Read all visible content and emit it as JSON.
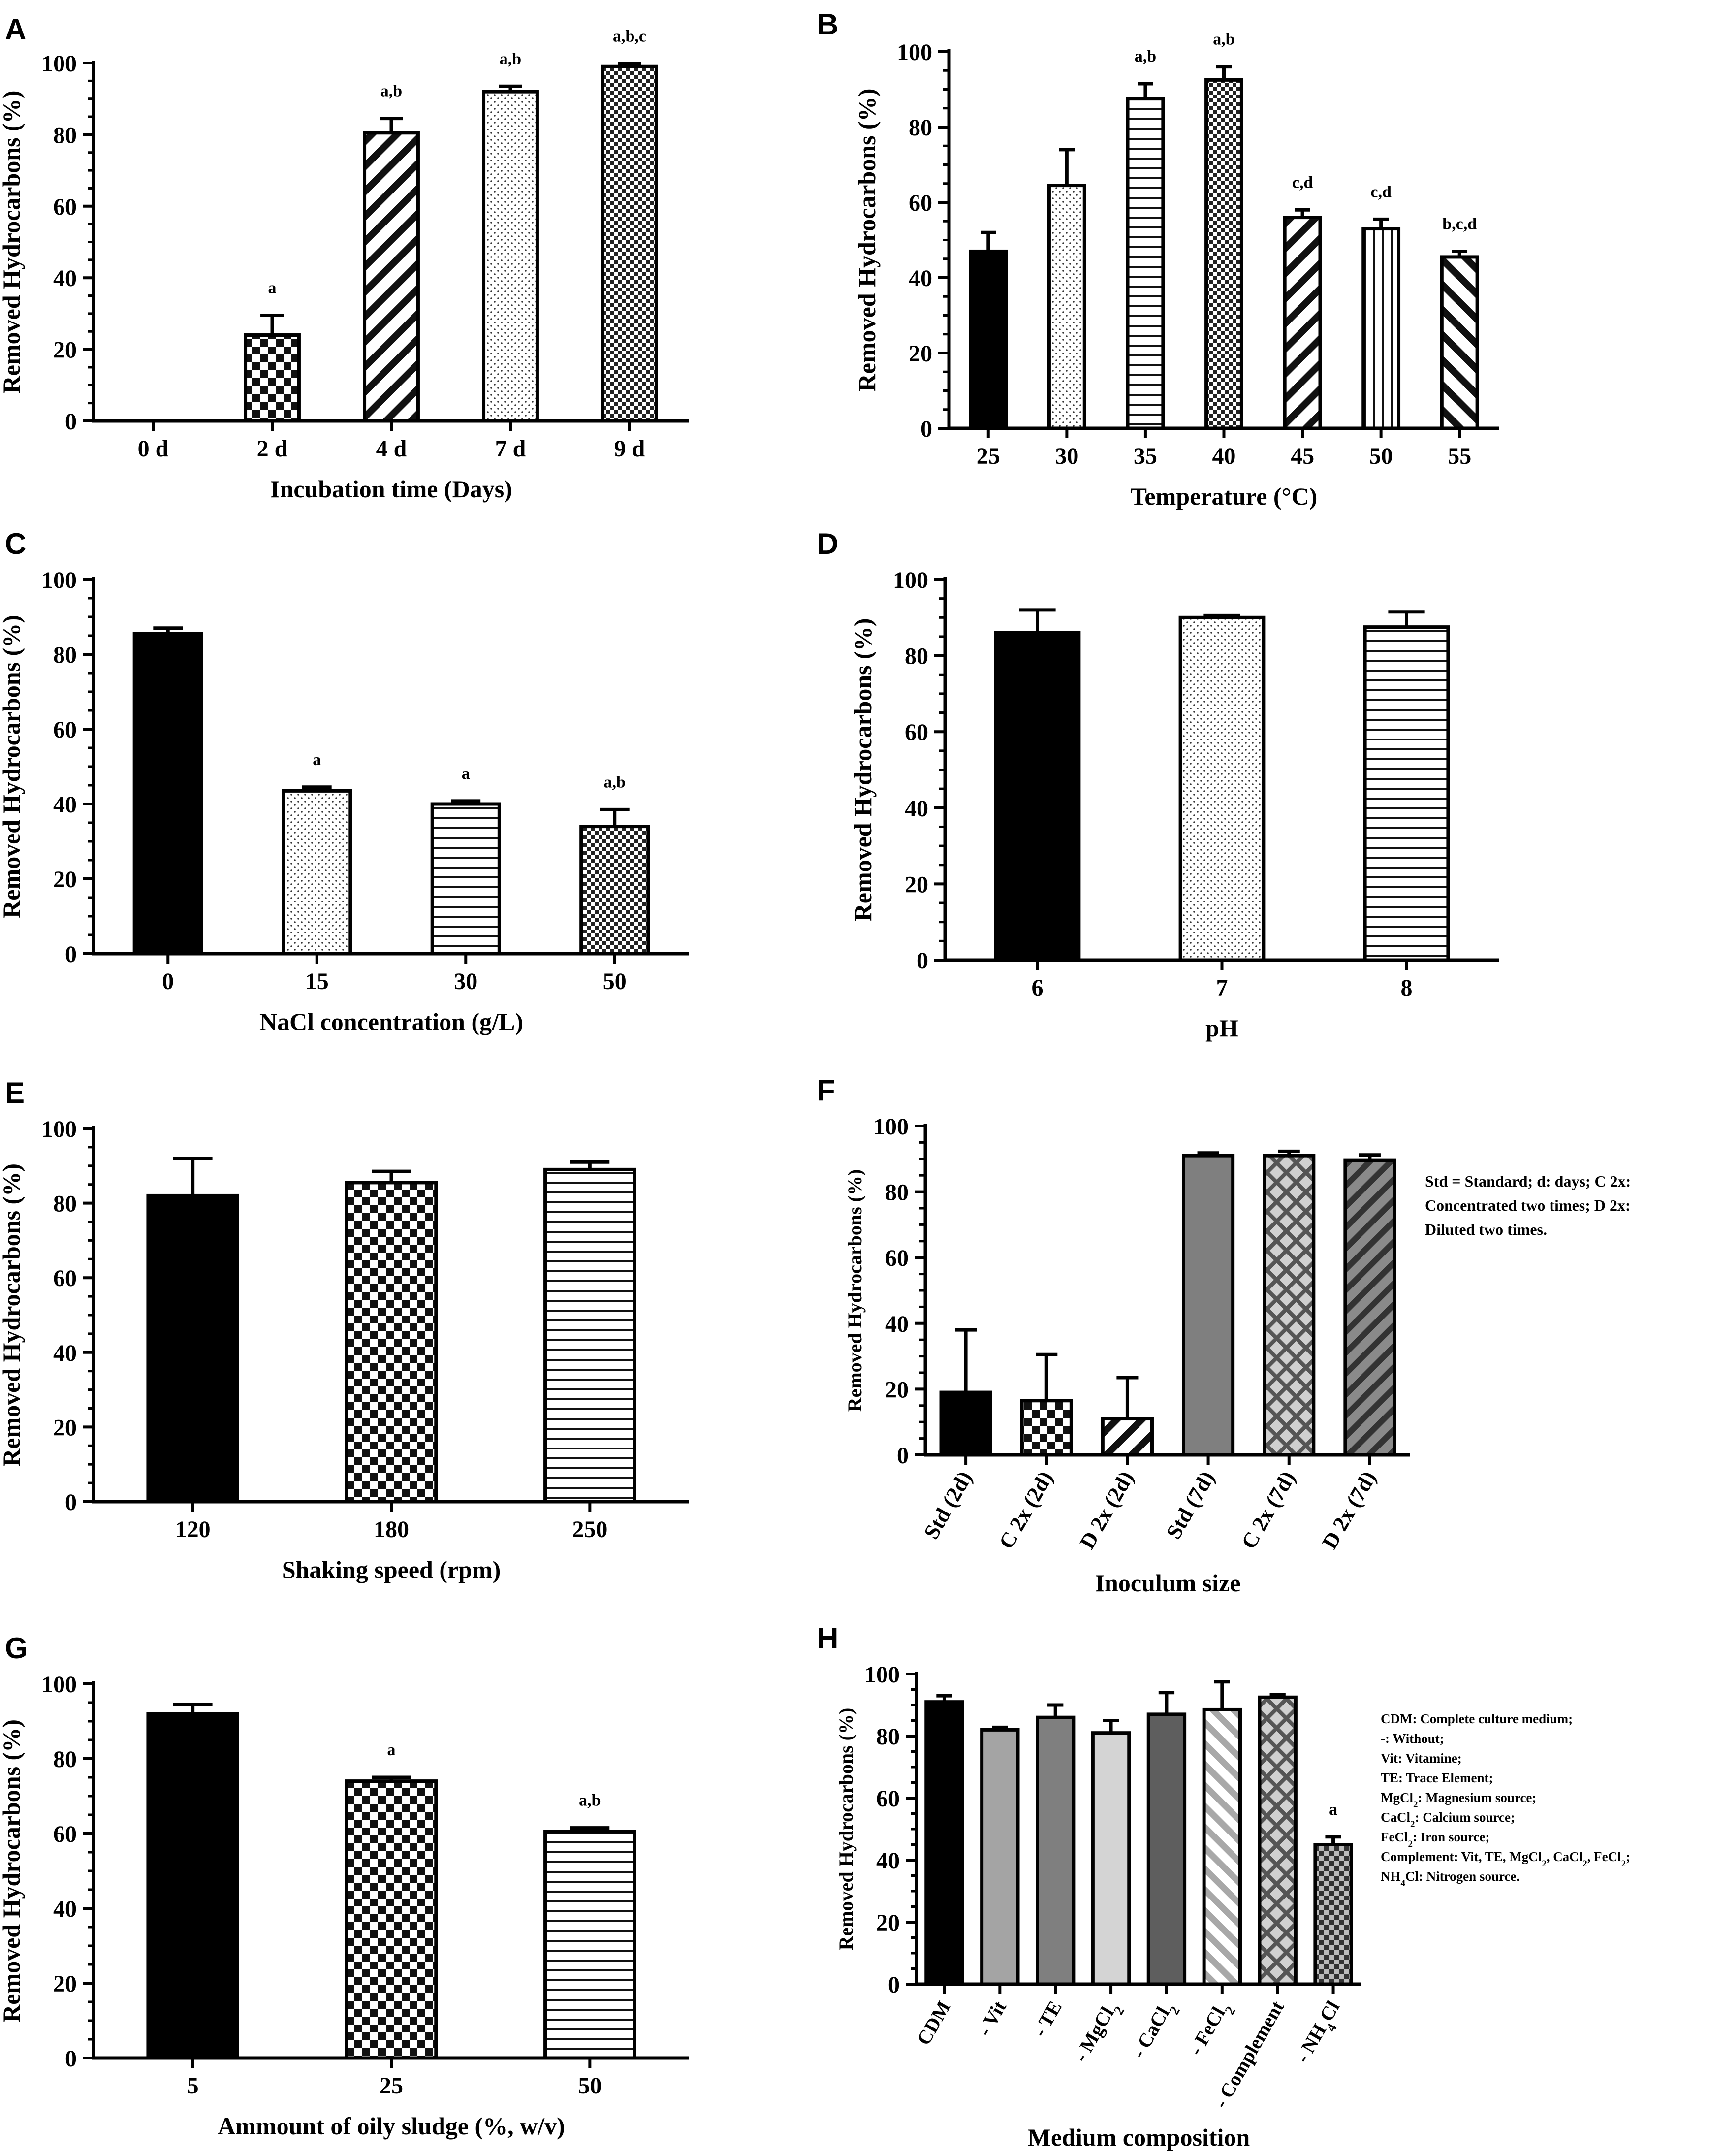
{
  "chart_data": [
    {
      "type": "bar",
      "panel": "A",
      "categories": [
        "0 d",
        "2 d",
        "4 d",
        "7 d",
        "9 d"
      ],
      "values": [
        0,
        24,
        80.5,
        92,
        99
      ],
      "errors": [
        0,
        5.5,
        4,
        1.5,
        0.8
      ],
      "significance": [
        "",
        "a",
        "a,b",
        "a,b",
        "a,b,c"
      ],
      "patterns": [
        "black",
        "checker",
        "diag-wide",
        "dots",
        "dense-checker"
      ],
      "xlabel": "Incubation time  (Days)",
      "ylabel": "Removed Hydrocarbons (%)",
      "ylim": [
        0,
        100
      ],
      "yticks": [
        0,
        20,
        40,
        60,
        80,
        100
      ]
    },
    {
      "type": "bar",
      "panel": "B",
      "categories": [
        "25",
        "30",
        "35",
        "40",
        "45",
        "50",
        "55"
      ],
      "values": [
        47,
        64.5,
        87.5,
        92.5,
        56,
        53,
        45.5
      ],
      "errors": [
        5,
        9.5,
        4,
        3.5,
        2,
        2.5,
        1.5
      ],
      "significance": [
        "",
        "",
        "a,b",
        "a,b",
        "c,d",
        "c,d",
        "b,c,d"
      ],
      "patterns": [
        "black",
        "dots",
        "hlines",
        "dense-checker",
        "diag-wide",
        "vlines",
        "diag-back"
      ],
      "xlabel": "Temperature (°C)",
      "ylabel": "Removed Hydrocarbons (%)",
      "ylim": [
        0,
        100
      ],
      "yticks": [
        0,
        20,
        40,
        60,
        80,
        100
      ]
    },
    {
      "type": "bar",
      "panel": "C",
      "categories": [
        "0",
        "15",
        "30",
        "50"
      ],
      "values": [
        85.5,
        43.5,
        40,
        34
      ],
      "errors": [
        1.5,
        1,
        0.8,
        4.5
      ],
      "significance": [
        "",
        "a",
        "a",
        "a,b"
      ],
      "patterns": [
        "black",
        "dots",
        "hlines",
        "dense-checker"
      ],
      "xlabel": "NaCl concentration (g/L)",
      "ylabel": "Removed Hydrocarbons (%)",
      "ylim": [
        0,
        100
      ],
      "yticks": [
        0,
        20,
        40,
        60,
        80,
        100
      ]
    },
    {
      "type": "bar",
      "panel": "D",
      "categories": [
        "6",
        "7",
        "8"
      ],
      "values": [
        86,
        90,
        87.5
      ],
      "errors": [
        6,
        0.5,
        4
      ],
      "significance": [
        "",
        "",
        ""
      ],
      "patterns": [
        "black",
        "dots",
        "hlines"
      ],
      "xlabel": "pH",
      "ylabel": "Removed Hydrocarbons (%)",
      "ylim": [
        0,
        100
      ],
      "yticks": [
        0,
        20,
        40,
        60,
        80,
        100
      ]
    },
    {
      "type": "bar",
      "panel": "E",
      "categories": [
        "120",
        "180",
        "250"
      ],
      "values": [
        82,
        85.5,
        89
      ],
      "errors": [
        10,
        3,
        2
      ],
      "significance": [
        "",
        "",
        ""
      ],
      "patterns": [
        "black",
        "checker",
        "hlines"
      ],
      "xlabel": "Shaking speed (rpm)",
      "ylabel": "Removed Hydrocarbons (%)",
      "ylim": [
        0,
        100
      ],
      "yticks": [
        0,
        20,
        40,
        60,
        80,
        100
      ]
    },
    {
      "type": "bar",
      "panel": "F",
      "categories": [
        "Std (2d)",
        "C 2x (2d)",
        "D 2x (2d)",
        "Std (7d)",
        "C 2x (7d)",
        "D 2x (7d)"
      ],
      "values": [
        19,
        16.5,
        11,
        91,
        91,
        89.5
      ],
      "errors": [
        19,
        14,
        12.5,
        0.8,
        1.3,
        1.7
      ],
      "significance": [
        "",
        "",
        "",
        "",
        "",
        ""
      ],
      "patterns": [
        "black",
        "checker",
        "diag-wide",
        "gray",
        "gray-crosshatch",
        "gray-diag"
      ],
      "xlabel": "Inoculum size",
      "ylabel": "Removed Hydrocarbons (%)",
      "ylim": [
        0,
        100
      ],
      "yticks": [
        0,
        20,
        40,
        60,
        80,
        100
      ],
      "note": [
        "Std = Standard; d: days; C 2x:",
        "Concentrated two times; D 2x:",
        "Diluted two times."
      ]
    },
    {
      "type": "bar",
      "panel": "G",
      "categories": [
        "5",
        "25",
        "50"
      ],
      "values": [
        92,
        74,
        60.5
      ],
      "errors": [
        2.5,
        1,
        1
      ],
      "significance": [
        "",
        "a",
        "a,b"
      ],
      "patterns": [
        "black",
        "checker",
        "hlines"
      ],
      "xlabel": "Ammount of oily sludge (%, w/v)",
      "ylabel": "Removed Hydrocarbons (%)",
      "ylim": [
        0,
        100
      ],
      "yticks": [
        0,
        20,
        40,
        60,
        80,
        100
      ]
    },
    {
      "type": "bar",
      "panel": "H",
      "categories": [
        "CDM",
        "- Vit",
        "- TE",
        "- MgCl₂",
        "- CaCl₂",
        "- FeCl₂",
        "- Complement",
        "- NH₄Cl"
      ],
      "values": [
        91,
        82,
        86,
        81,
        87,
        88.5,
        92.5,
        45
      ],
      "errors": [
        2,
        0.8,
        4,
        4,
        7,
        9,
        0.8,
        2.5
      ],
      "significance": [
        "",
        "",
        "",
        "",
        "",
        "",
        "",
        "a"
      ],
      "patterns": [
        "black",
        "gray-mid",
        "gray",
        "gray-light",
        "gray-dark",
        "gray-diag-light",
        "gray-crosshatch",
        "dark-checker"
      ],
      "xlabel": "Medium composition",
      "ylabel": "Removed Hydrocarbons (%)",
      "ylim": [
        0,
        100
      ],
      "yticks": [
        0,
        20,
        40,
        60,
        80,
        100
      ],
      "note": [
        "CDM: Complete culture medium;",
        "-: Without;",
        "Vit: Vitamine;",
        "TE: Trace Element;",
        "MgCl₂: Magnesium source;",
        "CaCl₂: Calcium source;",
        "FeCl₂: Iron source;",
        "Complement: Vit, TE, MgCl₂, CaCl₂, FeCl₂;",
        "NH₄Cl: Nitrogen source."
      ]
    }
  ]
}
